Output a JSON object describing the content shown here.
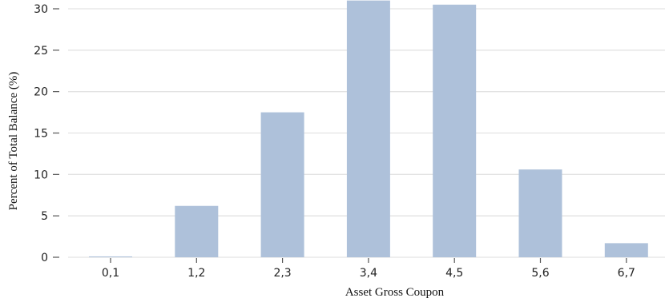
{
  "chart_data": {
    "type": "bar",
    "categories": [
      "0,1",
      "1,2",
      "2,3",
      "3,4",
      "4,5",
      "5,6",
      "6,7"
    ],
    "values": [
      0.1,
      6.2,
      17.5,
      31.0,
      30.5,
      10.6,
      1.7
    ],
    "xlabel": "Asset Gross Coupon",
    "ylabel": "Percent of Total Balance (%)",
    "ylim": [
      0,
      30
    ],
    "yticks": [
      0,
      5,
      10,
      15,
      20,
      25,
      30
    ],
    "grid": "horizontal",
    "bar_color": "#aec1da",
    "grid_color": "#e3e3e3"
  }
}
